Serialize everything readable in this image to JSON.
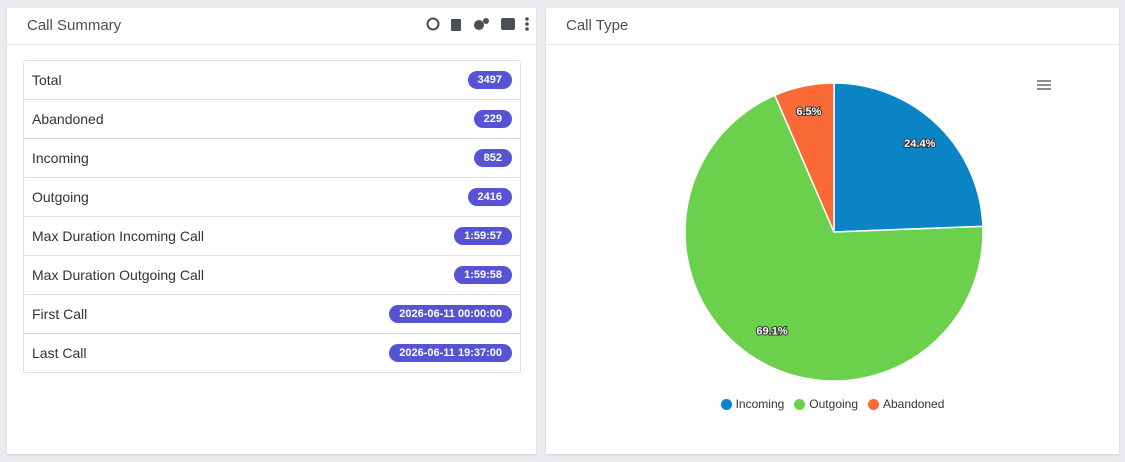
{
  "call_summary": {
    "title": "Call Summary",
    "rows": [
      {
        "label": "Total",
        "value": 3497
      },
      {
        "label": "Abandoned",
        "value": 229
      },
      {
        "label": "Incoming",
        "value": 852
      },
      {
        "label": "Outgoing",
        "value": 2416
      },
      {
        "label": "Max Duration Incoming Call",
        "value": "1:59:57"
      },
      {
        "label": "Max Duration Outgoing Call",
        "value": "1:59:58"
      },
      {
        "label": "First Call",
        "value": "2026-06-11 00:00:00"
      },
      {
        "label": "Last Call",
        "value": "2026-06-11 19:37:00"
      }
    ]
  },
  "chart_data": {
    "type": "pie",
    "title": "Call Type",
    "categories": [
      "Incoming",
      "Outgoing",
      "Abandoned"
    ],
    "values": [
      24.4,
      69.1,
      6.5
    ],
    "value_labels": [
      "24.4%",
      "69.1%",
      "6.5%"
    ],
    "colors": [
      "#0b84c6",
      "#6bd04b",
      "#f96a36"
    ]
  }
}
